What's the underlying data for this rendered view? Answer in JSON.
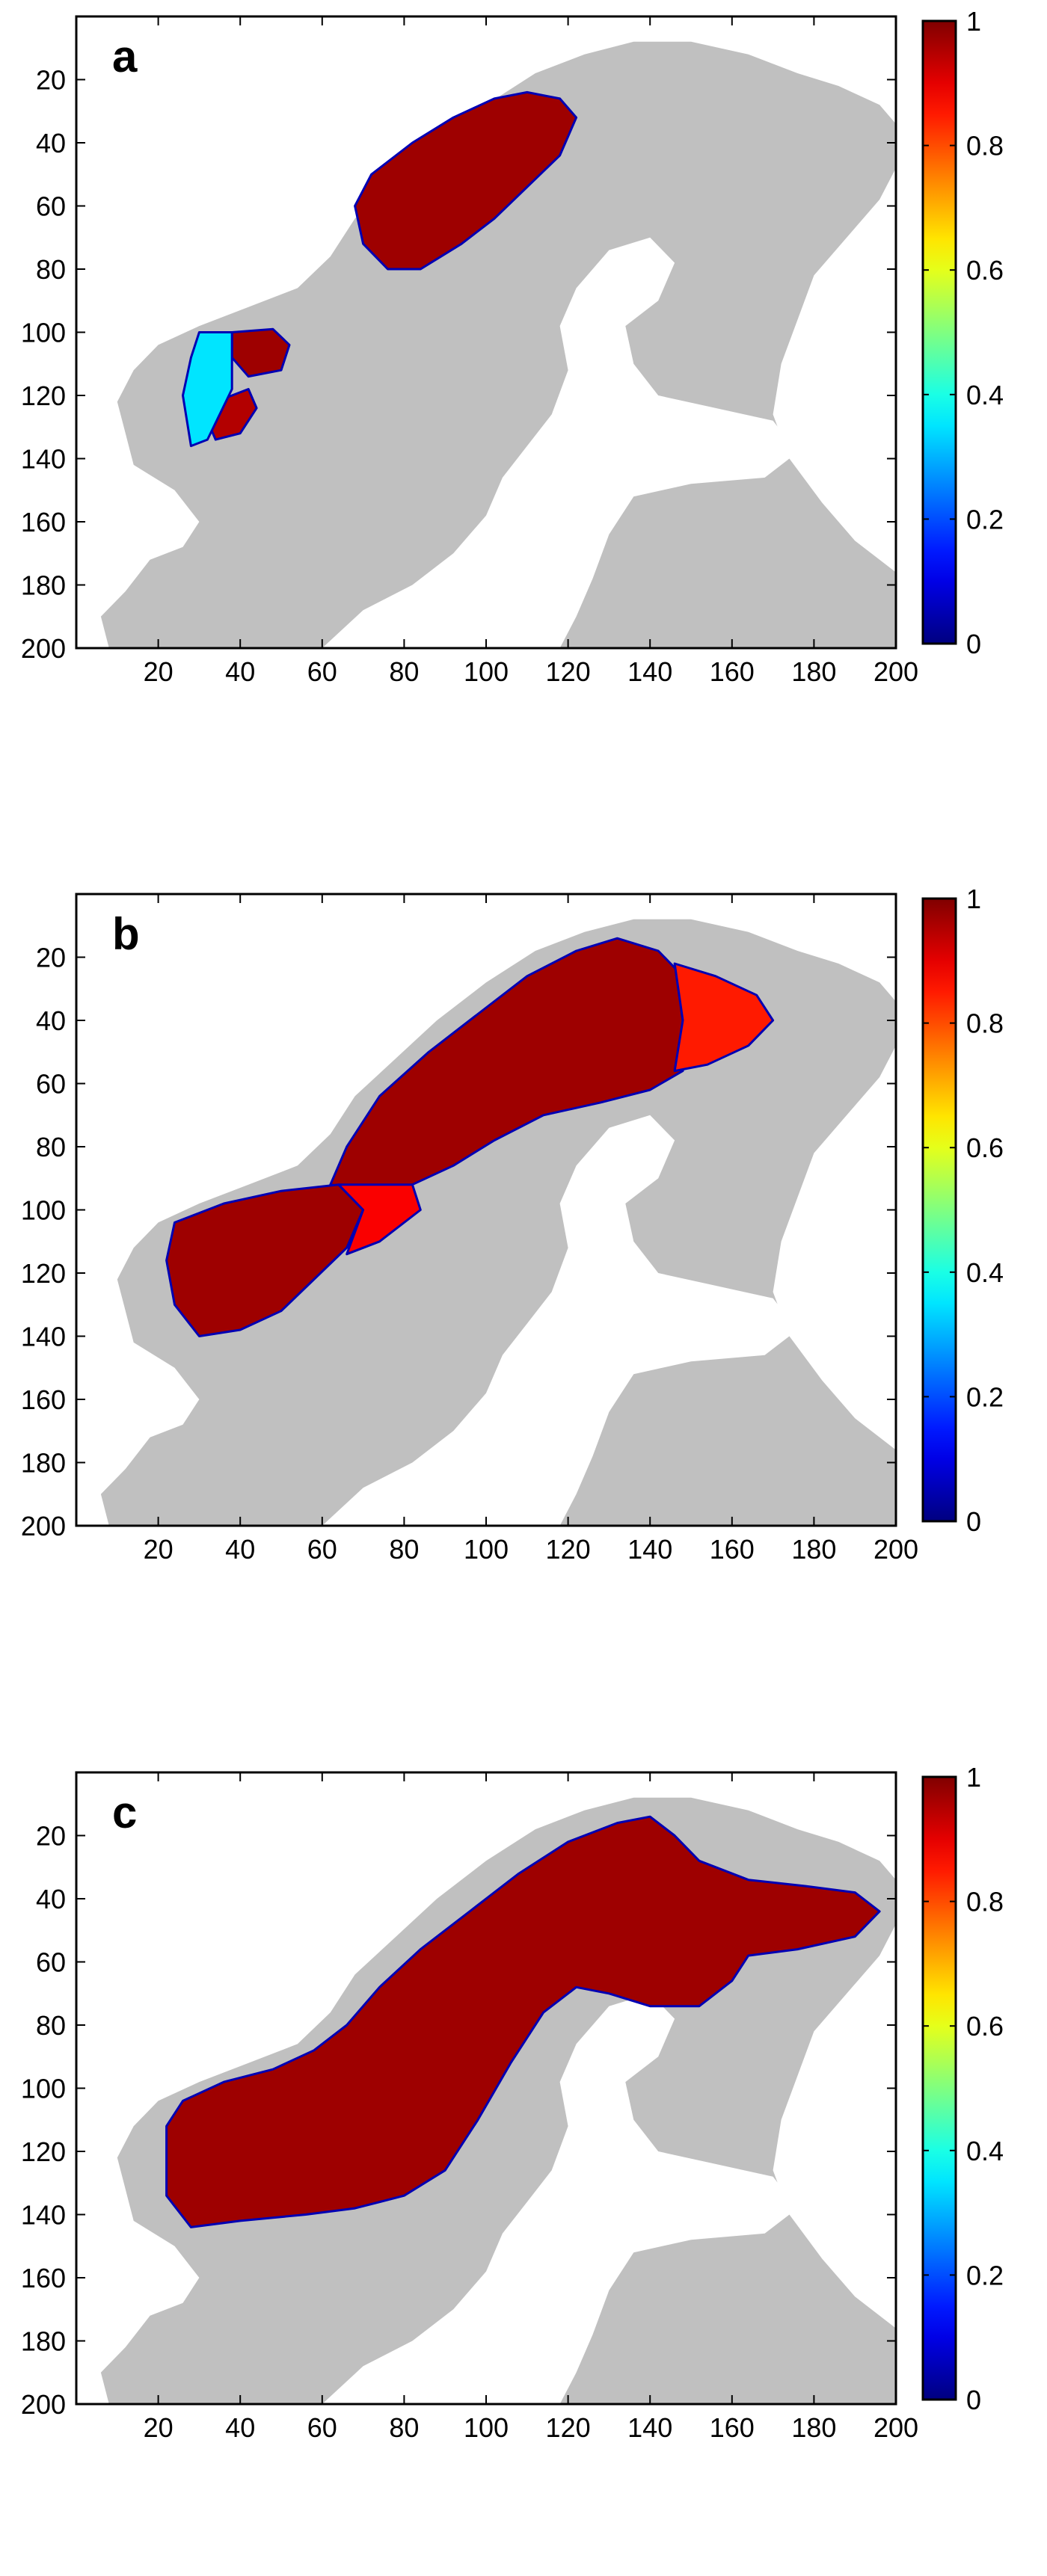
{
  "chart_data": [
    {
      "type": "heatmap",
      "panel_label": "a",
      "title": "",
      "xlabel": "",
      "ylabel": "",
      "xlim": [
        0,
        200
      ],
      "ylim": [
        200,
        0
      ],
      "xticks": [
        20,
        40,
        60,
        80,
        100,
        120,
        140,
        160,
        180,
        200
      ],
      "yticks": [
        20,
        40,
        60,
        80,
        100,
        120,
        140,
        160,
        180,
        200
      ],
      "colorbar": {
        "range": [
          0,
          1
        ],
        "ticks": [
          0,
          0.2,
          0.4,
          0.6,
          0.8,
          1
        ],
        "colormap": "jet"
      },
      "background": {
        "land_color": "#c0c0c0",
        "sea_color": "#ffffff"
      },
      "regions": [
        {
          "value": 0.97,
          "outline": [
            [
              68,
              60
            ],
            [
              72,
              50
            ],
            [
              82,
              40
            ],
            [
              92,
              32
            ],
            [
              102,
              26
            ],
            [
              110,
              24
            ],
            [
              118,
              26
            ],
            [
              122,
              32
            ],
            [
              118,
              44
            ],
            [
              110,
              54
            ],
            [
              102,
              64
            ],
            [
              94,
              72
            ],
            [
              84,
              80
            ],
            [
              76,
              80
            ],
            [
              70,
              72
            ]
          ]
        },
        {
          "value": 0.97,
          "outline": [
            [
              38,
              100
            ],
            [
              48,
              99
            ],
            [
              52,
              104
            ],
            [
              50,
              112
            ],
            [
              42,
              114
            ],
            [
              38,
              108
            ]
          ]
        },
        {
          "value": 0.95,
          "outline": [
            [
              34,
              122
            ],
            [
              42,
              118
            ],
            [
              44,
              124
            ],
            [
              40,
              132
            ],
            [
              34,
              134
            ],
            [
              32,
              128
            ]
          ]
        },
        {
          "value": 0.35,
          "outline": [
            [
              30,
              100
            ],
            [
              38,
              100
            ],
            [
              38,
              118
            ],
            [
              32,
              134
            ],
            [
              28,
              136
            ],
            [
              26,
              120
            ],
            [
              28,
              108
            ]
          ]
        }
      ]
    },
    {
      "type": "heatmap",
      "panel_label": "b",
      "title": "",
      "xlabel": "",
      "ylabel": "",
      "xlim": [
        0,
        200
      ],
      "ylim": [
        200,
        0
      ],
      "xticks": [
        20,
        40,
        60,
        80,
        100,
        120,
        140,
        160,
        180,
        200
      ],
      "yticks": [
        20,
        40,
        60,
        80,
        100,
        120,
        140,
        160,
        180,
        200
      ],
      "colorbar": {
        "range": [
          0,
          1
        ],
        "ticks": [
          0,
          0.2,
          0.4,
          0.6,
          0.8,
          1
        ],
        "colormap": "jet"
      },
      "background": {
        "land_color": "#c0c0c0",
        "sea_color": "#ffffff"
      },
      "regions": [
        {
          "value": 0.97,
          "outline": [
            [
              62,
              92
            ],
            [
              66,
              80
            ],
            [
              74,
              64
            ],
            [
              86,
              50
            ],
            [
              98,
              38
            ],
            [
              110,
              26
            ],
            [
              122,
              18
            ],
            [
              132,
              14
            ],
            [
              142,
              18
            ],
            [
              148,
              26
            ],
            [
              150,
              40
            ],
            [
              148,
              56
            ],
            [
              140,
              62
            ],
            [
              128,
              66
            ],
            [
              114,
              70
            ],
            [
              102,
              78
            ],
            [
              92,
              86
            ],
            [
              82,
              92
            ],
            [
              72,
              94
            ]
          ]
        },
        {
          "value": 0.85,
          "outline": [
            [
              146,
              22
            ],
            [
              156,
              26
            ],
            [
              166,
              32
            ],
            [
              170,
              40
            ],
            [
              164,
              48
            ],
            [
              154,
              54
            ],
            [
              146,
              56
            ],
            [
              148,
              40
            ]
          ]
        },
        {
          "value": 0.97,
          "outline": [
            [
              24,
              104
            ],
            [
              36,
              98
            ],
            [
              50,
              94
            ],
            [
              64,
              92
            ],
            [
              70,
              100
            ],
            [
              66,
              112
            ],
            [
              58,
              122
            ],
            [
              50,
              132
            ],
            [
              40,
              138
            ],
            [
              30,
              140
            ],
            [
              24,
              130
            ],
            [
              22,
              116
            ]
          ]
        },
        {
          "value": 0.88,
          "outline": [
            [
              64,
              92
            ],
            [
              82,
              92
            ],
            [
              84,
              100
            ],
            [
              74,
              110
            ],
            [
              66,
              114
            ],
            [
              70,
              100
            ]
          ]
        }
      ]
    },
    {
      "type": "heatmap",
      "panel_label": "c",
      "title": "",
      "xlabel": "",
      "ylabel": "",
      "xlim": [
        0,
        200
      ],
      "ylim": [
        200,
        0
      ],
      "xticks": [
        20,
        40,
        60,
        80,
        100,
        120,
        140,
        160,
        180,
        200
      ],
      "yticks": [
        20,
        40,
        60,
        80,
        100,
        120,
        140,
        160,
        180,
        200
      ],
      "colorbar": {
        "range": [
          0,
          1
        ],
        "ticks": [
          0,
          0.2,
          0.4,
          0.6,
          0.8,
          1
        ],
        "colormap": "jet"
      },
      "background": {
        "land_color": "#c0c0c0",
        "sea_color": "#ffffff"
      },
      "regions": [
        {
          "value": 0.97,
          "outline": [
            [
              22,
              112
            ],
            [
              26,
              104
            ],
            [
              36,
              98
            ],
            [
              48,
              94
            ],
            [
              58,
              88
            ],
            [
              66,
              80
            ],
            [
              74,
              68
            ],
            [
              84,
              56
            ],
            [
              96,
              44
            ],
            [
              108,
              32
            ],
            [
              120,
              22
            ],
            [
              132,
              16
            ],
            [
              140,
              14
            ],
            [
              146,
              20
            ],
            [
              152,
              28
            ],
            [
              164,
              34
            ],
            [
              178,
              36
            ],
            [
              190,
              38
            ],
            [
              196,
              44
            ],
            [
              190,
              52
            ],
            [
              176,
              56
            ],
            [
              164,
              58
            ],
            [
              160,
              66
            ],
            [
              152,
              74
            ],
            [
              140,
              74
            ],
            [
              130,
              70
            ],
            [
              122,
              68
            ],
            [
              114,
              76
            ],
            [
              106,
              92
            ],
            [
              98,
              110
            ],
            [
              90,
              126
            ],
            [
              80,
              134
            ],
            [
              68,
              138
            ],
            [
              56,
              140
            ],
            [
              40,
              142
            ],
            [
              28,
              144
            ],
            [
              22,
              134
            ]
          ]
        }
      ]
    }
  ],
  "colors": {
    "land": "#c0c0c0",
    "sea": "#ffffff",
    "axis": "#000000"
  }
}
